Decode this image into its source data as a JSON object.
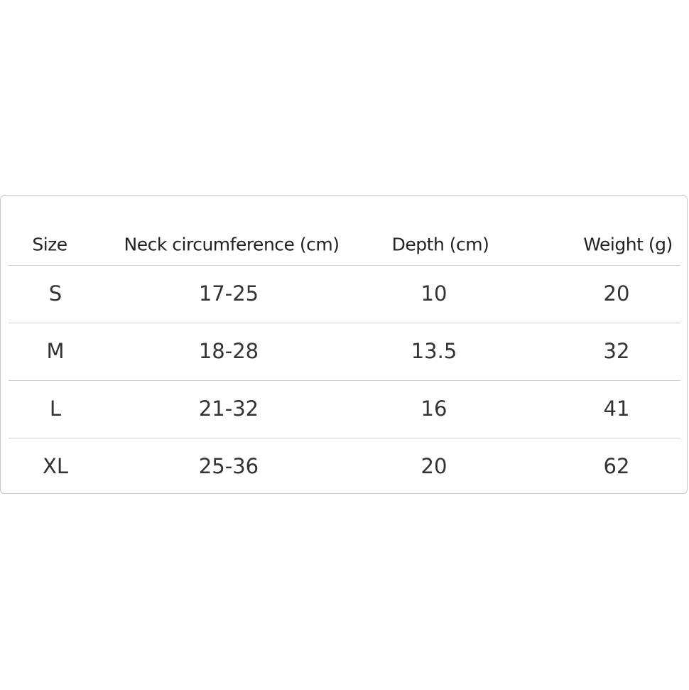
{
  "table": {
    "headers": [
      "Size",
      "Neck circumference (cm)",
      "Depth (cm)",
      "Weight (g)"
    ],
    "rows": [
      [
        "S",
        "17-25",
        "10",
        "20"
      ],
      [
        "M",
        "18-28",
        "13.5",
        "32"
      ],
      [
        "L",
        "21-32",
        "16",
        "41"
      ],
      [
        "XL",
        "25-36",
        "20",
        "62"
      ]
    ]
  }
}
